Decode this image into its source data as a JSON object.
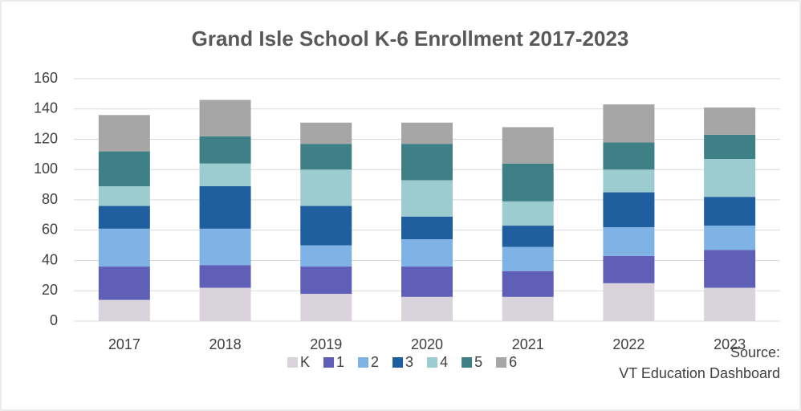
{
  "chart_data": {
    "type": "stacked-bar",
    "title": "Grand Isle School K-6 Enrollment 2017-2023",
    "categories": [
      "2017",
      "2018",
      "2019",
      "2020",
      "2021",
      "2022",
      "2023"
    ],
    "series": [
      {
        "name": "K",
        "color": "#d9d3dc",
        "values": [
          14,
          22,
          18,
          16,
          16,
          25,
          22
        ]
      },
      {
        "name": "1",
        "color": "#5f5fb8",
        "values": [
          22,
          15,
          18,
          20,
          17,
          18,
          25
        ]
      },
      {
        "name": "2",
        "color": "#7fb2e5",
        "values": [
          25,
          24,
          14,
          18,
          16,
          19,
          16
        ]
      },
      {
        "name": "3",
        "color": "#1f5f9f",
        "values": [
          15,
          28,
          26,
          15,
          14,
          23,
          19
        ]
      },
      {
        "name": "4",
        "color": "#9ccbd0",
        "values": [
          13,
          15,
          24,
          24,
          16,
          15,
          25
        ]
      },
      {
        "name": "5",
        "color": "#3f7f86",
        "values": [
          23,
          18,
          17,
          24,
          25,
          18,
          16
        ]
      },
      {
        "name": "6",
        "color": "#a6a6a6",
        "values": [
          24,
          24,
          14,
          14,
          24,
          25,
          18
        ]
      }
    ],
    "ylim": [
      0,
      160
    ],
    "yticks": [
      0,
      20,
      40,
      60,
      80,
      100,
      120,
      140,
      160
    ],
    "grid": true,
    "legend": "bottom",
    "source": [
      "Source:",
      "VT Education Dashboard"
    ]
  }
}
